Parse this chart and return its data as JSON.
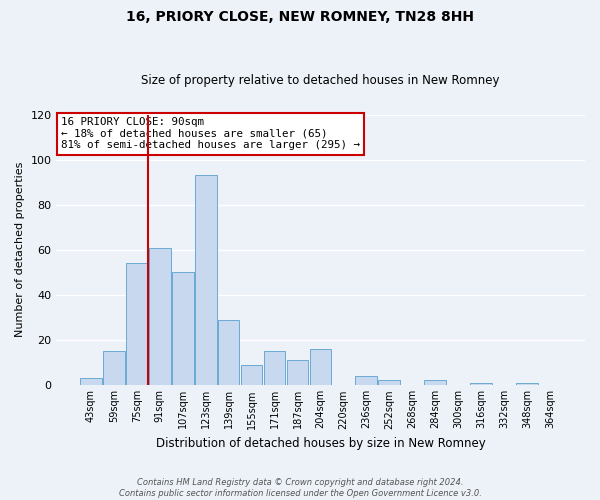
{
  "title": "16, PRIORY CLOSE, NEW ROMNEY, TN28 8HH",
  "subtitle": "Size of property relative to detached houses in New Romney",
  "xlabel": "Distribution of detached houses by size in New Romney",
  "ylabel": "Number of detached properties",
  "bar_color": "#c8d8ee",
  "bar_edge_color": "#6aaad4",
  "bin_labels": [
    "43sqm",
    "59sqm",
    "75sqm",
    "91sqm",
    "107sqm",
    "123sqm",
    "139sqm",
    "155sqm",
    "171sqm",
    "187sqm",
    "204sqm",
    "220sqm",
    "236sqm",
    "252sqm",
    "268sqm",
    "284sqm",
    "300sqm",
    "316sqm",
    "332sqm",
    "348sqm",
    "364sqm"
  ],
  "bar_heights": [
    3,
    15,
    54,
    61,
    50,
    93,
    29,
    9,
    15,
    11,
    16,
    0,
    4,
    2,
    0,
    2,
    0,
    1,
    0,
    1,
    0
  ],
  "vline_color": "#cc0000",
  "ylim": [
    0,
    120
  ],
  "yticks": [
    0,
    20,
    40,
    60,
    80,
    100,
    120
  ],
  "annotation_title": "16 PRIORY CLOSE: 90sqm",
  "annotation_line1": "← 18% of detached houses are smaller (65)",
  "annotation_line2": "81% of semi-detached houses are larger (295) →",
  "annotation_box_color": "#ffffff",
  "annotation_box_edge": "#cc0000",
  "footer1": "Contains HM Land Registry data © Crown copyright and database right 2024.",
  "footer2": "Contains public sector information licensed under the Open Government Licence v3.0.",
  "background_color": "#edf2f9",
  "grid_color": "#ffffff"
}
